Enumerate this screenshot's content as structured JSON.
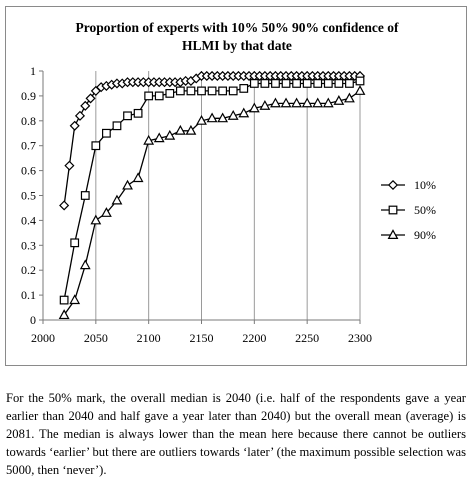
{
  "chart_data": {
    "type": "line",
    "title_line1": "Proportion of experts with 10% 50% 90% confidence of",
    "title_line2": "HLMI by that date",
    "xlabel": "",
    "ylabel": "",
    "xlim": [
      2000,
      2300
    ],
    "ylim": [
      0,
      1
    ],
    "x_ticks": [
      "2000",
      "2050",
      "2100",
      "2150",
      "2200",
      "2250",
      "2300"
    ],
    "y_ticks": [
      "0",
      "0.1",
      "0.2",
      "0.3",
      "0.4",
      "0.5",
      "0.6",
      "0.7",
      "0.8",
      "0.9",
      "1"
    ],
    "grid": "vertical",
    "legend_position": "right",
    "series": [
      {
        "name": "10%",
        "marker": "diamond",
        "x": [
          2020,
          2025,
          2030,
          2035,
          2040,
          2045,
          2050,
          2055,
          2060,
          2065,
          2070,
          2075,
          2080,
          2085,
          2090,
          2095,
          2100,
          2105,
          2110,
          2115,
          2120,
          2125,
          2130,
          2135,
          2140,
          2145,
          2150,
          2155,
          2160,
          2165,
          2170,
          2175,
          2180,
          2185,
          2190,
          2195,
          2200,
          2205,
          2210,
          2215,
          2220,
          2225,
          2230,
          2235,
          2240,
          2245,
          2250,
          2255,
          2260,
          2265,
          2270,
          2275,
          2280,
          2285,
          2290,
          2295,
          2300
        ],
        "values": [
          0.46,
          0.62,
          0.78,
          0.82,
          0.86,
          0.89,
          0.92,
          0.935,
          0.94,
          0.945,
          0.95,
          0.95,
          0.955,
          0.955,
          0.955,
          0.955,
          0.955,
          0.955,
          0.955,
          0.955,
          0.955,
          0.955,
          0.955,
          0.96,
          0.96,
          0.97,
          0.98,
          0.98,
          0.98,
          0.98,
          0.98,
          0.98,
          0.98,
          0.98,
          0.98,
          0.98,
          0.98,
          0.98,
          0.98,
          0.98,
          0.98,
          0.98,
          0.98,
          0.98,
          0.98,
          0.98,
          0.98,
          0.98,
          0.98,
          0.98,
          0.98,
          0.98,
          0.98,
          0.98,
          0.98,
          0.98,
          0.98
        ]
      },
      {
        "name": "50%",
        "marker": "square",
        "x": [
          2020,
          2030,
          2040,
          2050,
          2060,
          2070,
          2080,
          2090,
          2100,
          2110,
          2120,
          2130,
          2140,
          2150,
          2160,
          2170,
          2180,
          2190,
          2200,
          2210,
          2220,
          2230,
          2240,
          2250,
          2260,
          2270,
          2280,
          2290,
          2300
        ],
        "values": [
          0.08,
          0.31,
          0.5,
          0.7,
          0.75,
          0.78,
          0.82,
          0.83,
          0.9,
          0.9,
          0.91,
          0.92,
          0.92,
          0.92,
          0.92,
          0.92,
          0.92,
          0.93,
          0.95,
          0.95,
          0.95,
          0.95,
          0.95,
          0.95,
          0.95,
          0.95,
          0.95,
          0.95,
          0.96
        ]
      },
      {
        "name": "90%",
        "marker": "triangle",
        "x": [
          2020,
          2030,
          2040,
          2050,
          2060,
          2070,
          2080,
          2090,
          2100,
          2110,
          2120,
          2130,
          2140,
          2150,
          2160,
          2170,
          2180,
          2190,
          2200,
          2210,
          2220,
          2230,
          2240,
          2250,
          2260,
          2270,
          2280,
          2290,
          2300
        ],
        "values": [
          0.02,
          0.08,
          0.22,
          0.4,
          0.43,
          0.48,
          0.54,
          0.57,
          0.72,
          0.73,
          0.74,
          0.76,
          0.76,
          0.8,
          0.81,
          0.81,
          0.82,
          0.83,
          0.85,
          0.86,
          0.87,
          0.87,
          0.87,
          0.87,
          0.87,
          0.87,
          0.88,
          0.89,
          0.92
        ]
      }
    ]
  },
  "caption": "For the 50% mark, the overall median is 2040 (i.e. half of the respondents gave a year earlier than 2040 and half gave a year later than 2040) but the overall mean (average) is 2081. The median is always lower than the mean here because there cannot be outliers towards ‘earlier’ but there are outliers towards ‘later’ (the maximum possible selection was 5000, then ‘never’)."
}
